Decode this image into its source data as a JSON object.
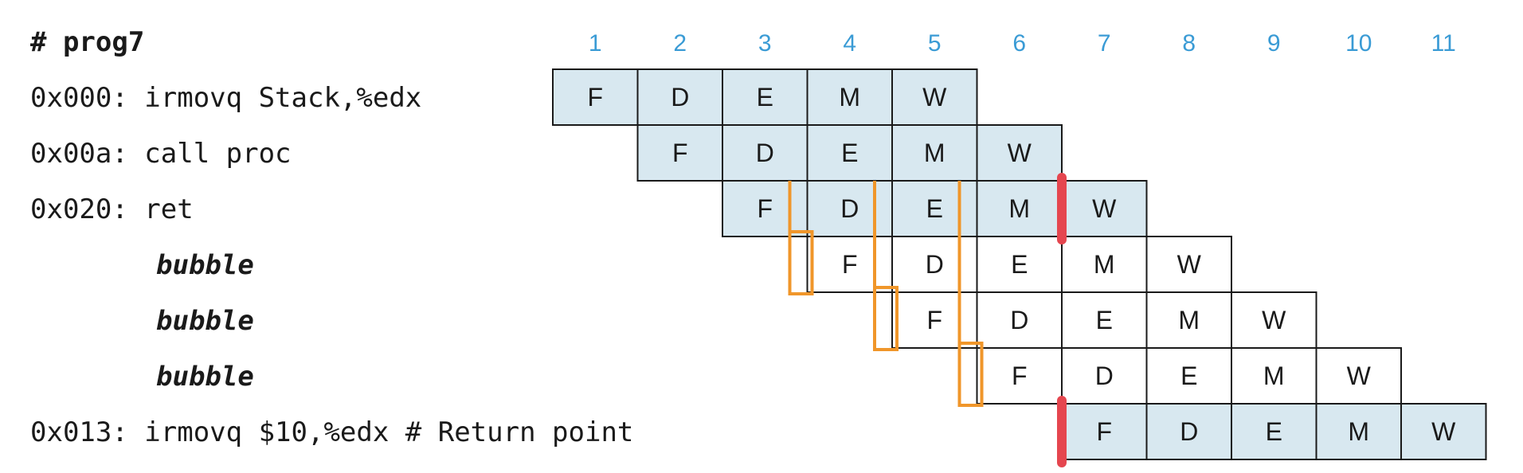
{
  "program": {
    "title": "# prog7",
    "lines": [
      {
        "text": "0x000: irmovq Stack,%edx",
        "style": "normal",
        "start_cycle": 1,
        "highlight": true
      },
      {
        "text": "0x00a: call proc",
        "style": "normal",
        "start_cycle": 2,
        "highlight": true
      },
      {
        "text": "0x020: ret",
        "style": "normal",
        "start_cycle": 3,
        "highlight": true
      },
      {
        "text": "bubble",
        "style": "bubble",
        "start_cycle": 4,
        "highlight": false
      },
      {
        "text": "bubble",
        "style": "bubble",
        "start_cycle": 5,
        "highlight": false
      },
      {
        "text": "bubble",
        "style": "bubble",
        "start_cycle": 6,
        "highlight": false
      },
      {
        "text": "0x013: irmovq $10,%edx # Return point",
        "style": "normal",
        "start_cycle": 7,
        "highlight": true
      }
    ]
  },
  "pipeline": {
    "cycles": [
      "1",
      "2",
      "3",
      "4",
      "5",
      "6",
      "7",
      "8",
      "9",
      "10",
      "11"
    ],
    "stages": [
      "F",
      "D",
      "E",
      "M",
      "W"
    ]
  },
  "colors": {
    "cycle_number": "#3a9bd5",
    "highlight_fill": "#d8e8f0",
    "plain_fill": "#ffffff",
    "arrow": "#f0962a",
    "marker": "#e5464f"
  },
  "annotations": {
    "stall_arrows": 3,
    "return_markers": 2
  }
}
